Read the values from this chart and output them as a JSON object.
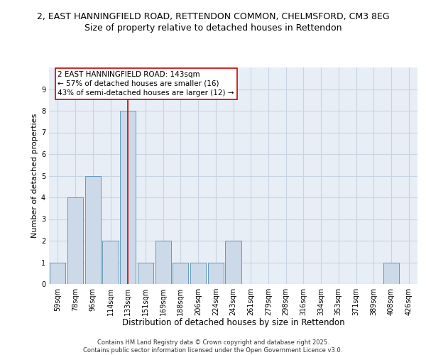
{
  "title_line1": "2, EAST HANNINGFIELD ROAD, RETTENDON COMMON, CHELMSFORD, CM3 8EG",
  "title_line2": "Size of property relative to detached houses in Rettendon",
  "xlabel": "Distribution of detached houses by size in Rettendon",
  "ylabel": "Number of detached properties",
  "bins": [
    "59sqm",
    "78sqm",
    "96sqm",
    "114sqm",
    "133sqm",
    "151sqm",
    "169sqm",
    "188sqm",
    "206sqm",
    "224sqm",
    "243sqm",
    "261sqm",
    "279sqm",
    "298sqm",
    "316sqm",
    "334sqm",
    "353sqm",
    "371sqm",
    "389sqm",
    "408sqm",
    "426sqm"
  ],
  "values": [
    1,
    4,
    5,
    2,
    8,
    1,
    2,
    1,
    1,
    1,
    2,
    0,
    0,
    0,
    0,
    0,
    0,
    0,
    0,
    1,
    0
  ],
  "bar_color": "#ccd9e8",
  "bar_edge_color": "#6699bb",
  "vline_color": "#cc0000",
  "annotation_text": "2 EAST HANNINGFIELD ROAD: 143sqm\n← 57% of detached houses are smaller (16)\n43% of semi-detached houses are larger (12) →",
  "annotation_box_color": "#ffffff",
  "annotation_box_edge_color": "#cc0000",
  "ylim": [
    0,
    10
  ],
  "yticks": [
    0,
    1,
    2,
    3,
    4,
    5,
    6,
    7,
    8,
    9,
    10
  ],
  "grid_color": "#c8d4e3",
  "background_color": "#e8eef5",
  "footer_text": "Contains HM Land Registry data © Crown copyright and database right 2025.\nContains public sector information licensed under the Open Government Licence v3.0.",
  "title_fontsize": 9,
  "subtitle_fontsize": 9,
  "tick_fontsize": 7,
  "xlabel_fontsize": 8.5,
  "ylabel_fontsize": 8,
  "annotation_fontsize": 7.5,
  "footer_fontsize": 6
}
